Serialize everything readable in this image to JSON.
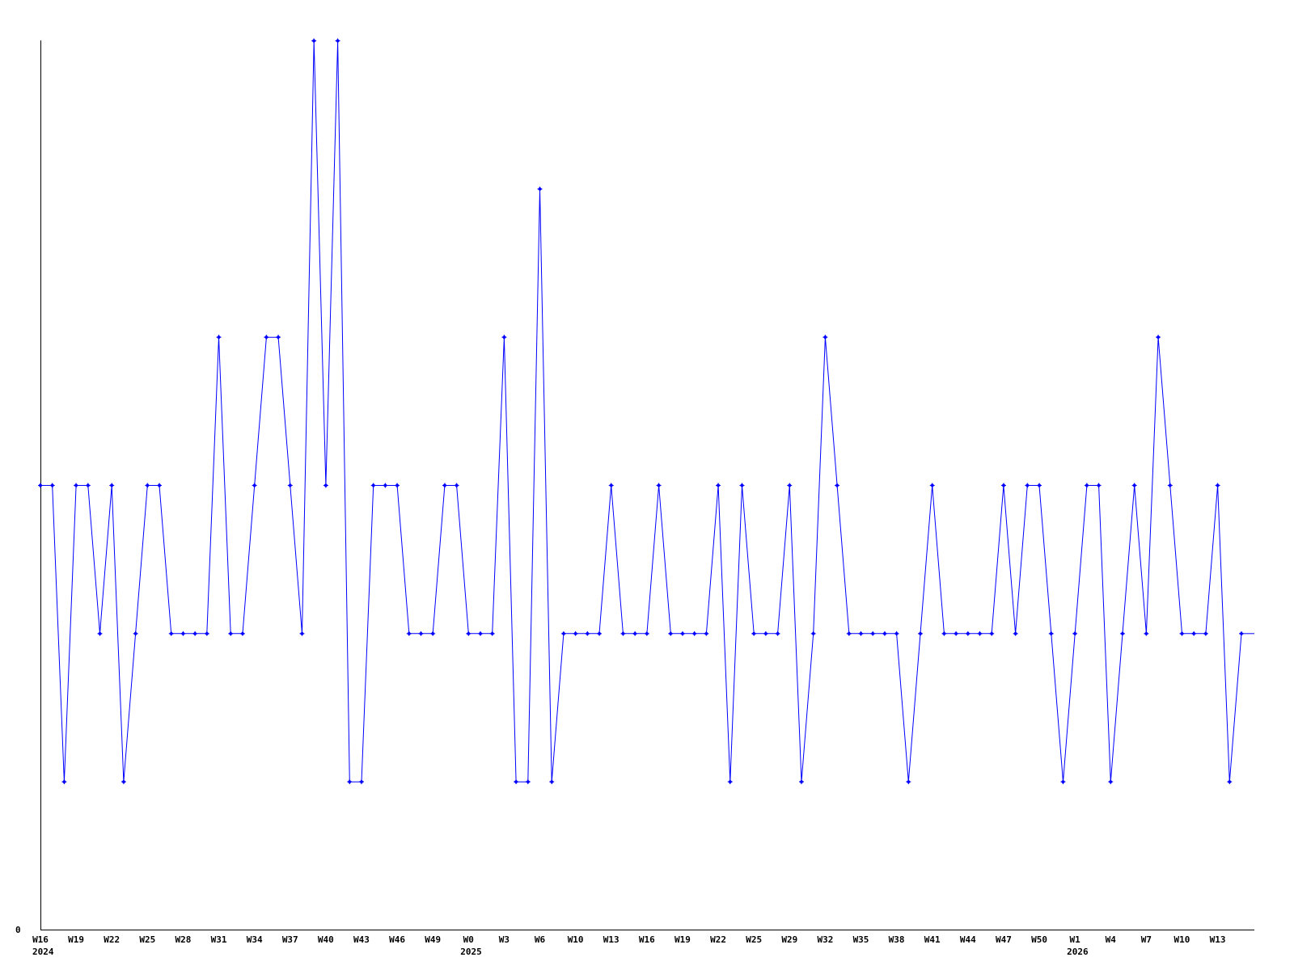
{
  "chart_data": {
    "type": "line",
    "title": "",
    "xlabel": "",
    "ylabel": "",
    "ylim": [
      0,
      6
    ],
    "y_tick_labels": [
      "0"
    ],
    "grid": false,
    "legend": "none",
    "line_color": "#0000ff",
    "axis_color": "#000000",
    "x_tick_labels": [
      {
        "label": "W16",
        "year": "2024"
      },
      {
        "label": "W19"
      },
      {
        "label": "W22"
      },
      {
        "label": "W25"
      },
      {
        "label": "W28"
      },
      {
        "label": "W31"
      },
      {
        "label": "W34"
      },
      {
        "label": "W37"
      },
      {
        "label": "W40"
      },
      {
        "label": "W43"
      },
      {
        "label": "W46"
      },
      {
        "label": "W49"
      },
      {
        "label": "W0",
        "year": "2025"
      },
      {
        "label": "W3"
      },
      {
        "label": "W6"
      },
      {
        "label": "W10"
      },
      {
        "label": "W13"
      },
      {
        "label": "W16"
      },
      {
        "label": "W19"
      },
      {
        "label": "W22"
      },
      {
        "label": "W25"
      },
      {
        "label": "W29"
      },
      {
        "label": "W32"
      },
      {
        "label": "W35"
      },
      {
        "label": "W38"
      },
      {
        "label": "W41"
      },
      {
        "label": "W44"
      },
      {
        "label": "W47"
      },
      {
        "label": "W50"
      },
      {
        "label": "W1",
        "year": "2026"
      },
      {
        "label": "W4"
      },
      {
        "label": "W7"
      },
      {
        "label": "W10"
      },
      {
        "label": "W13"
      }
    ],
    "x_tick_every_points": 3,
    "series": [
      {
        "values": [
          3,
          3,
          1,
          3,
          3,
          2,
          3,
          1,
          2,
          3,
          3,
          2,
          2,
          2,
          2,
          4,
          2,
          2,
          3,
          4,
          4,
          3,
          2,
          6,
          3,
          6,
          1,
          1,
          3,
          3,
          3,
          2,
          2,
          2,
          3,
          3,
          2,
          2,
          2,
          4,
          1,
          1,
          5,
          1,
          2,
          2,
          2,
          2,
          3,
          2,
          2,
          2,
          3,
          2,
          2,
          2,
          2,
          3,
          1,
          3,
          2,
          2,
          2,
          3,
          1,
          2,
          4,
          3,
          2,
          2,
          2,
          2,
          2,
          1,
          2,
          3,
          2,
          2,
          2,
          2,
          2,
          3,
          2,
          3,
          3,
          2,
          1,
          2,
          3,
          3,
          1,
          2,
          3,
          2,
          4,
          3,
          2,
          2,
          2,
          3,
          1,
          2
        ]
      }
    ]
  }
}
